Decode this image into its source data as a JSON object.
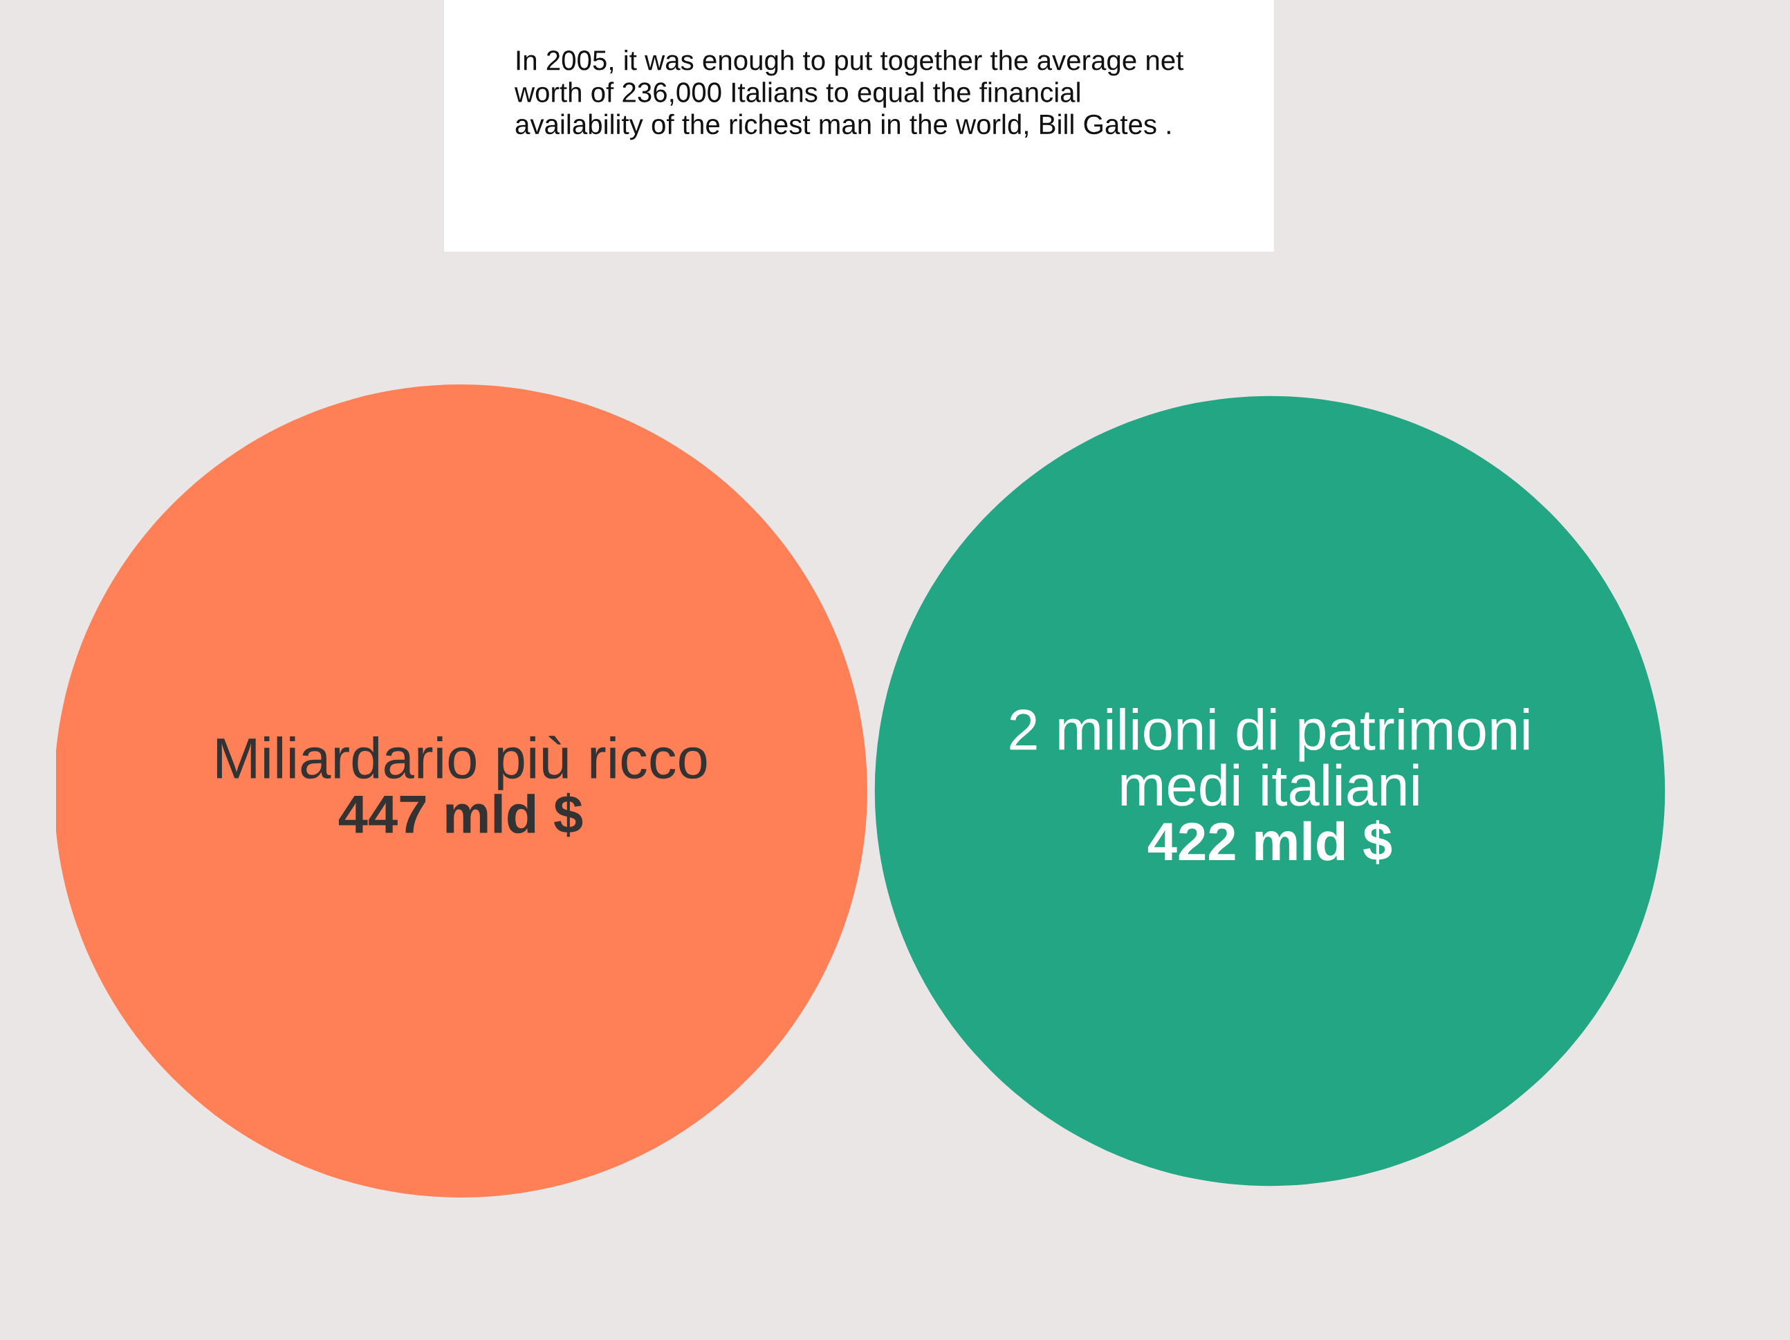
{
  "chart_data": {
    "type": "other",
    "title": "In 2005, it was enough to put together the average net\nworth of 236,000 Italians to equal the financial\navailability of the richest man in the world, Bill Gates .",
    "categories": [
      "Miliardario più ricco",
      "2 milioni di patrimoni\nmedi italiani"
    ],
    "values": [
      447,
      422
    ],
    "value_labels": [
      "447 mld $",
      "422 mld $"
    ],
    "colors": [
      "#ff7f56",
      "#23a683"
    ]
  }
}
